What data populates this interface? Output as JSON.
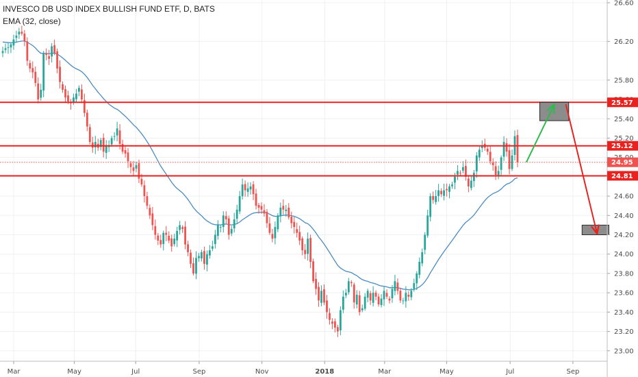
{
  "header": {
    "title": "INVESCO DB USD INDEX BULLISH FUND ETF, D, BATS",
    "indicator": "EMA (32, close)"
  },
  "chart_data": {
    "type": "candlestick",
    "title": "INVESCO DB USD INDEX BULLISH FUND ETF, D, BATS",
    "indicator": "EMA (32, close)",
    "y_ticks": [
      23.0,
      23.2,
      23.4,
      23.6,
      23.8,
      24.0,
      24.2,
      24.4,
      24.6,
      24.8,
      25.0,
      25.2,
      25.4,
      25.6,
      25.8,
      26.2,
      26.6
    ],
    "ylim": [
      22.97,
      26.6
    ],
    "x_ticks": [
      "Mar",
      "May",
      "Jul",
      "Sep",
      "Nov",
      "2018",
      "Mar",
      "May",
      "Jul",
      "Sep"
    ],
    "x_tick_weeks": [
      0,
      8.6,
      17.3,
      26.3,
      35.2,
      44.1,
      52.6,
      61.4,
      70.4,
      79.3
    ],
    "xlim_weeks": [
      0,
      86.2
    ],
    "levels": [
      {
        "value": 25.57,
        "label": "25.57",
        "color": "#e8221f"
      },
      {
        "value": 25.12,
        "label": "25.12",
        "color": "#e8221f"
      },
      {
        "value": 24.81,
        "label": "24.81",
        "color": "#e8221f"
      }
    ],
    "last_price": {
      "value": 24.95,
      "label": "24.95",
      "color": "#ef5350"
    },
    "colors": {
      "up": "#26a69a",
      "down": "#ef5350",
      "ema": "#4a8bc2",
      "level": "#e8221f",
      "projection_up": "#2dba4e",
      "projection_down": "#e8221f",
      "zone": "#8c8c8c"
    },
    "projection": {
      "zones": [
        {
          "w0": 74.6,
          "w1": 78.7,
          "p_top": 25.57,
          "p_bottom": 25.38
        },
        {
          "w0": 80.6,
          "w1": 84.4,
          "p_top": 24.3,
          "p_bottom": 24.2
        }
      ],
      "up_arrow": [
        [
          72.7,
          24.95
        ],
        [
          76.6,
          25.54
        ]
      ],
      "down_arrow": [
        [
          78.3,
          25.55
        ],
        [
          82.7,
          24.22
        ]
      ]
    },
    "closes": [
      26.1,
      26.13,
      26.14,
      26.17,
      26.22,
      26.26,
      26.3,
      26.28,
      26.2,
      26.0,
      25.92,
      25.88,
      25.77,
      25.6,
      25.7,
      26.08,
      26.06,
      26.02,
      26.15,
      26.08,
      25.92,
      25.78,
      25.7,
      25.62,
      25.58,
      25.56,
      25.62,
      25.66,
      25.72,
      25.6,
      25.46,
      25.32,
      25.16,
      25.1,
      25.16,
      25.1,
      25.18,
      25.06,
      25.12,
      25.12,
      25.2,
      25.22,
      25.3,
      25.14,
      25.06,
      25.04,
      24.96,
      24.9,
      24.86,
      24.92,
      24.78,
      24.72,
      24.6,
      24.5,
      24.4,
      24.3,
      24.2,
      24.14,
      24.1,
      24.22,
      24.2,
      24.14,
      24.08,
      24.16,
      24.24,
      24.3,
      24.26,
      24.1,
      24.02,
      23.9,
      23.8,
      23.96,
      23.98,
      24.02,
      23.9,
      24.0,
      24.04,
      24.08,
      24.2,
      24.3,
      24.28,
      24.4,
      24.36,
      24.2,
      24.26,
      24.36,
      24.46,
      24.6,
      24.72,
      24.66,
      24.68,
      24.7,
      24.62,
      24.5,
      24.48,
      24.46,
      24.42,
      24.32,
      24.22,
      24.16,
      24.28,
      24.4,
      24.48,
      24.46,
      24.46,
      24.38,
      24.32,
      24.28,
      24.22,
      24.14,
      24.04,
      24.0,
      24.16,
      23.92,
      23.72,
      23.64,
      23.52,
      23.62,
      23.5,
      23.4,
      23.32,
      23.28,
      23.24,
      23.2,
      23.42,
      23.56,
      23.6,
      23.72,
      23.7,
      23.5,
      23.58,
      23.4,
      23.44,
      23.56,
      23.62,
      23.52,
      23.6,
      23.56,
      23.48,
      23.54,
      23.62,
      23.56,
      23.52,
      23.64,
      23.72,
      23.62,
      23.52,
      23.52,
      23.6,
      23.56,
      23.62,
      23.7,
      23.8,
      23.92,
      24.02,
      24.2,
      24.4,
      24.6,
      24.56,
      24.6,
      24.66,
      24.62,
      24.66,
      24.66,
      24.7,
      24.72,
      24.8,
      24.86,
      24.84,
      24.9,
      24.8,
      24.7,
      24.76,
      24.84,
      25.02,
      25.08,
      25.12,
      25.1,
      25.06,
      24.96,
      24.92,
      24.82,
      24.86,
      25.0,
      25.16,
      25.06,
      24.88,
      25.02,
      25.22,
      24.95
    ]
  }
}
